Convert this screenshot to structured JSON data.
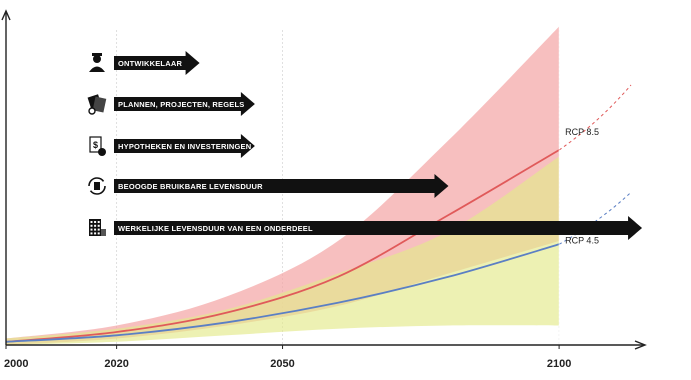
{
  "chart_data": {
    "type": "area",
    "title": "",
    "xlabel": "",
    "ylabel": "",
    "xlim": [
      2000,
      2113
    ],
    "ylim": [
      0,
      100
    ],
    "x_ticks": [
      {
        "value": 2000,
        "label": "2000"
      },
      {
        "value": 2020,
        "label": "2020"
      },
      {
        "value": 2050,
        "label": "2050"
      },
      {
        "value": 2100,
        "label": "2100"
      }
    ],
    "grid": "vertical",
    "series": [
      {
        "name": "RCP 8.5",
        "color": "#e05a5a",
        "band_color": "#f4a6a6",
        "x": [
          2000,
          2020,
          2040,
          2060,
          2080,
          2100
        ],
        "values": [
          1,
          4,
          10,
          21,
          40,
          60
        ],
        "upper": [
          2,
          6,
          15,
          32,
          63,
          98
        ],
        "lower": [
          0,
          2,
          6,
          12,
          22,
          32
        ],
        "projection_x": [
          2100,
          2113
        ],
        "projection_values": [
          60,
          80
        ]
      },
      {
        "name": "RCP 4.5",
        "color": "#5b7fc4",
        "band_color": "#e3ea8a",
        "x": [
          2000,
          2020,
          2040,
          2060,
          2080,
          2100
        ],
        "values": [
          1,
          3,
          7,
          13,
          21,
          31
        ],
        "upper": [
          2,
          5,
          11,
          22,
          35,
          58
        ],
        "lower": [
          0,
          1,
          3,
          5,
          6,
          6
        ],
        "projection_x": [
          2100,
          2113
        ],
        "projection_values": [
          31,
          47
        ]
      }
    ],
    "annotations": [
      {
        "label": "ONTWIKKELAAR",
        "icon": "developer-icon",
        "x_end": 2035,
        "row": 0
      },
      {
        "label": "PLANNEN, PROJECTEN, REGELS",
        "icon": "documents-icon",
        "x_end": 2045,
        "row": 1
      },
      {
        "label": "HYPOTHEKEN EN INVESTERINGEN",
        "icon": "mortgage-icon",
        "x_end": 2045,
        "row": 2
      },
      {
        "label": "BEOOGDE BRUIKBARE LEVENSDUUR",
        "icon": "lifecycle-icon",
        "x_end": 2080,
        "row": 3
      },
      {
        "label": "WERKELIJKE LEVENSDUUR VAN EEN ONDERDEEL",
        "icon": "building-icon",
        "x_end": 2115,
        "row": 4
      }
    ]
  }
}
